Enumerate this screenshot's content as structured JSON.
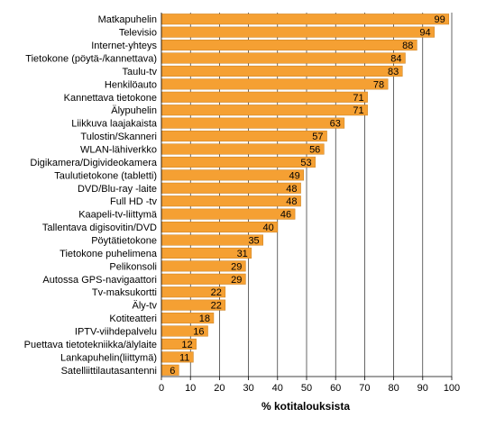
{
  "chart_data": {
    "type": "bar",
    "orientation": "horizontal",
    "categories": [
      "Matkapuhelin",
      "Televisio",
      "Internet-yhteys",
      "Tietokone (pöytä-/kannettava)",
      "Taulu-tv",
      "Henkilöauto",
      "Kannettava tietokone",
      "Älypuhelin",
      "Liikkuva laajakaista",
      "Tulostin/Skanneri",
      "WLAN-lähiverkko",
      "Digikamera/Digivideokamera",
      "Taulutietokone (tabletti)",
      "DVD/Blu-ray -laite",
      "Full HD -tv",
      "Kaapeli-tv-liittymä",
      "Tallentava digisovitin/DVD",
      "Pöytätietokone",
      "Tietokone puhelimena",
      "Pelikonsoli",
      "Autossa GPS-navigaattori",
      "Tv-maksukortti",
      "Äly-tv",
      "Kotiteatteri",
      "IPTV-viihdepalvelu",
      "Puettava tietotekniikka/älylaite",
      "Lankapuhelin(liittymä)",
      "Satelliittilautasantenni"
    ],
    "values": [
      99,
      94,
      88,
      84,
      83,
      78,
      71,
      71,
      63,
      57,
      56,
      53,
      49,
      48,
      48,
      46,
      40,
      35,
      31,
      29,
      29,
      22,
      22,
      18,
      16,
      12,
      11,
      6
    ],
    "xlabel": "% kotitalouksista",
    "xlim": [
      0,
      100
    ],
    "xticks": [
      0,
      10,
      20,
      30,
      40,
      50,
      60,
      70,
      80,
      90,
      100
    ],
    "grid": "vertical",
    "data_labels": true,
    "legend": "none",
    "colors": {
      "bar": "#F5A033",
      "bar_edge": "#C97E1C",
      "grid": "#000000",
      "axis": "#000000",
      "text": "#000000"
    }
  }
}
